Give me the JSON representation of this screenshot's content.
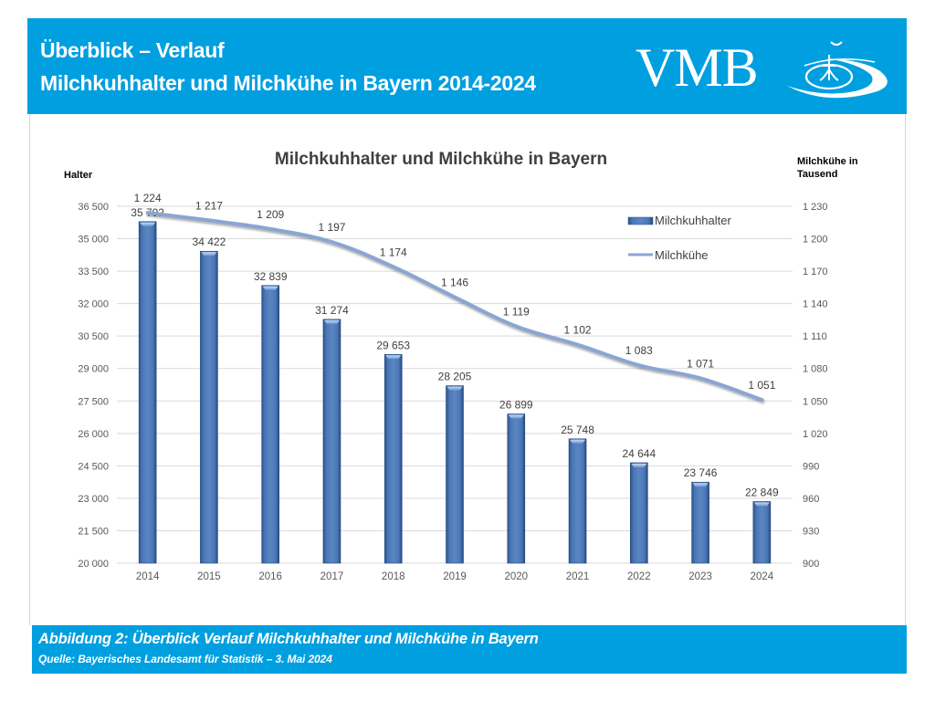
{
  "header": {
    "title_line1": "Überblick – Verlauf",
    "title_line2": "Milchkuhhalter und Milchkühe in Bayern 2014-2024",
    "logo_text": "VMB",
    "logo_icon": "vmb-logo-icon",
    "band_color": "#009fe0"
  },
  "footer": {
    "caption": "Abbildung 2: Überblick Verlauf Milchkuhhalter und Milchkühe in Bayern",
    "source": "Quelle: Bayerisches Landesamt für Statistik – 3. Mai 2024"
  },
  "chart_data": {
    "type": "bar",
    "title": "Milchkuhhalter und Milchkühe in Bayern",
    "categories": [
      "2014",
      "2015",
      "2016",
      "2017",
      "2018",
      "2019",
      "2020",
      "2021",
      "2022",
      "2023",
      "2024"
    ],
    "series": [
      {
        "name": "Milchkuhhalter",
        "type": "bar",
        "axis": "left",
        "color": "#4f7ab8",
        "values": [
          35792,
          34422,
          32839,
          31274,
          29653,
          28205,
          26899,
          25748,
          24644,
          23746,
          22849
        ],
        "labels": [
          "35 792",
          "34 422",
          "32 839",
          "31 274",
          "29 653",
          "28 205",
          "26 899",
          "25 748",
          "24 644",
          "23 746",
          "22 849"
        ]
      },
      {
        "name": "Milchkühe",
        "type": "line",
        "axis": "right",
        "color": "#8aa5d4",
        "values": [
          1224,
          1217,
          1209,
          1197,
          1174,
          1146,
          1119,
          1102,
          1083,
          1071,
          1051
        ],
        "labels": [
          "1 224",
          "1 217",
          "1 209",
          "1 197",
          "1 174",
          "1 146",
          "1 119",
          "1 102",
          "1 083",
          "1 071",
          "1 051"
        ]
      }
    ],
    "y_left": {
      "label": "Halter",
      "range": [
        20000,
        36500
      ],
      "ticks": [
        "20 000",
        "21 500",
        "23 000",
        "24 500",
        "26 000",
        "27 500",
        "29 000",
        "30 500",
        "32 000",
        "33 500",
        "35 000",
        "36 500"
      ]
    },
    "y_right": {
      "label_line1": "Milchkühe in",
      "label_line2": "Tausend",
      "range": [
        900,
        1230
      ],
      "ticks": [
        "900",
        "930",
        "960",
        "990",
        "1 020",
        "1 050",
        "1 080",
        "1 110",
        "1 140",
        "1 170",
        "1 200",
        "1 230"
      ]
    },
    "grid": true,
    "legend": {
      "position": "top-right",
      "items": [
        "Milchkuhhalter",
        "Milchkühe"
      ]
    }
  }
}
